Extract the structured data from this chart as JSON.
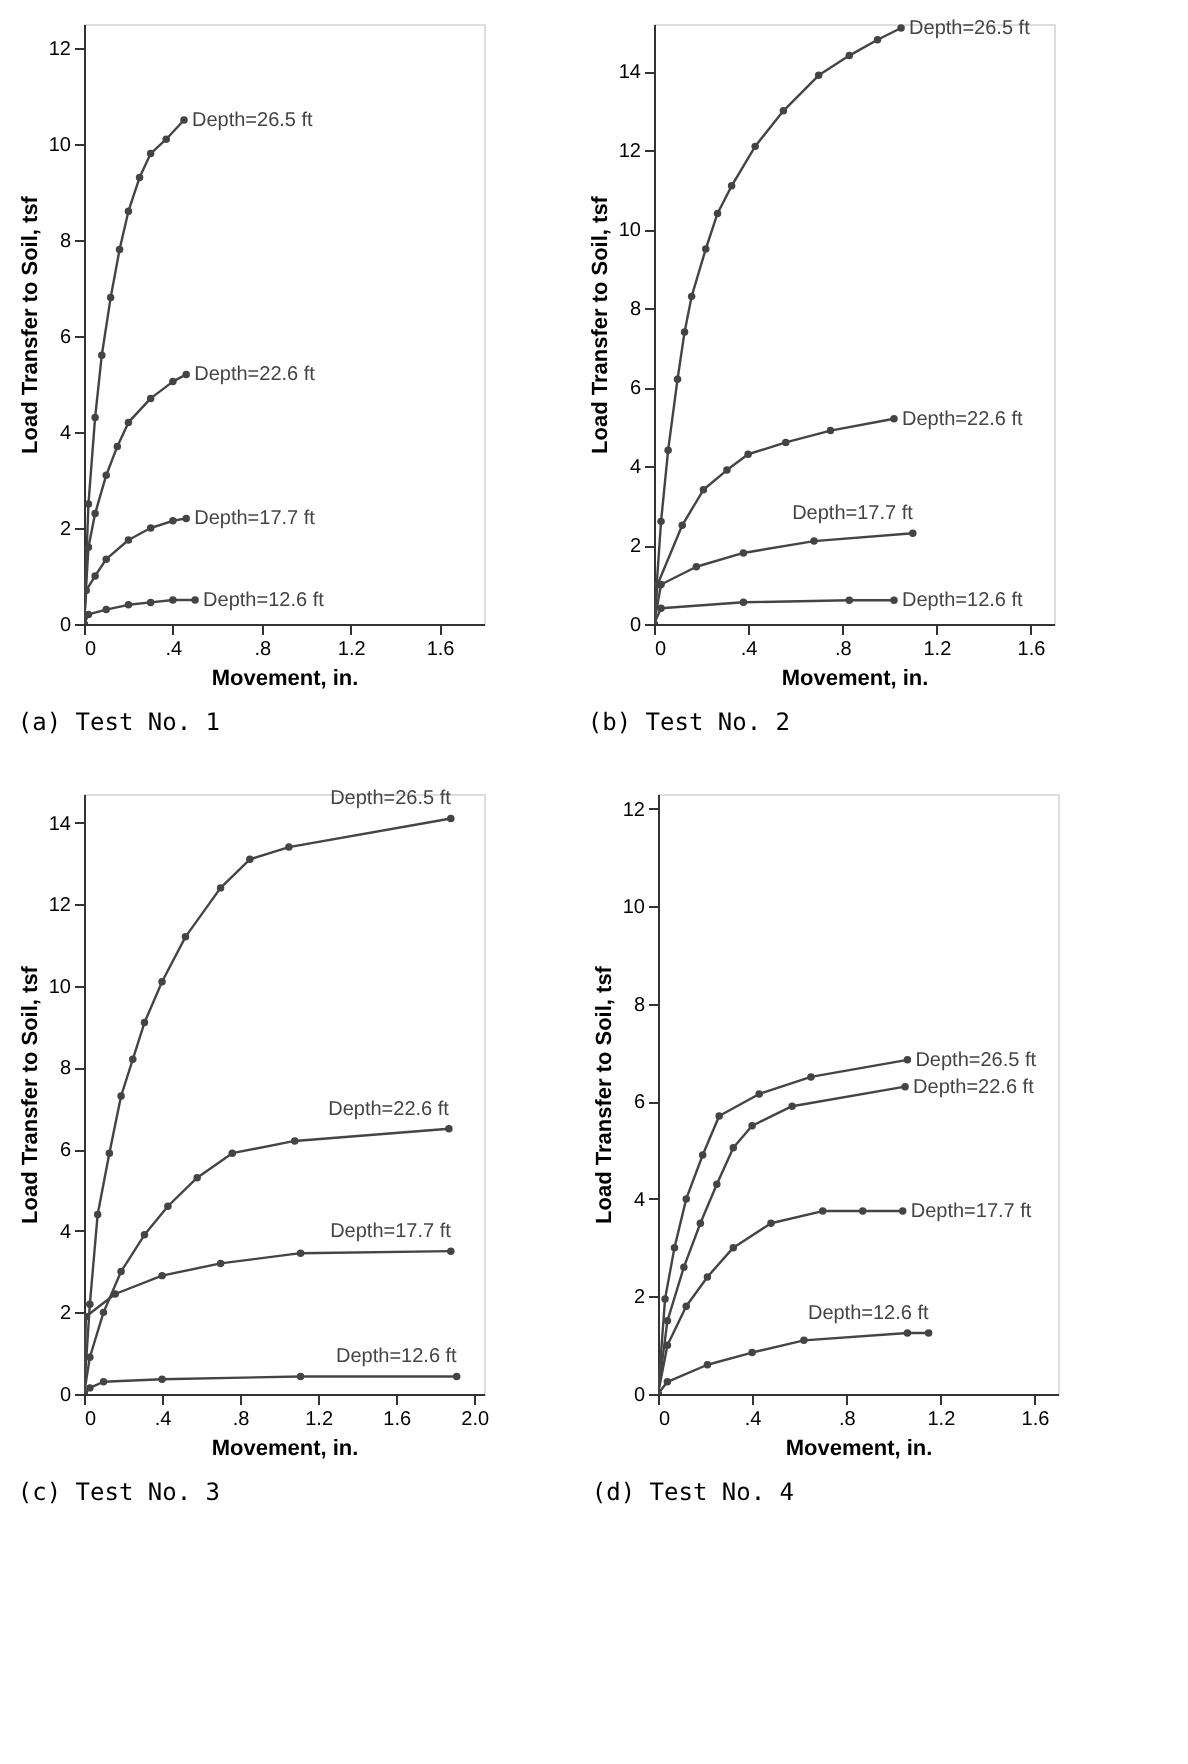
{
  "chart_data": [
    {
      "type": "line",
      "title": "(a) Test No. 1",
      "xlabel": "Movement, in.",
      "ylabel": "Load Transfer to Soil, tsf",
      "xlim": [
        0,
        1.8
      ],
      "xticks": [
        0,
        {
          "value": 0.4,
          "label": ".4"
        },
        {
          "value": 0.8,
          "label": ".8"
        },
        1.2,
        1.6
      ],
      "ylim": [
        0,
        12.5
      ],
      "yticks": [
        0,
        2,
        4,
        6,
        8,
        10,
        12
      ],
      "grid": false,
      "marker": "circle",
      "line_style": "solid",
      "series": [
        {
          "name": "Depth=26.5 ft",
          "color": "#444444",
          "x": [
            0,
            0.02,
            0.05,
            0.08,
            0.12,
            0.16,
            0.2,
            0.25,
            0.3,
            0.37,
            0.45
          ],
          "values": [
            0,
            2.5,
            4.3,
            5.6,
            6.8,
            7.8,
            8.6,
            9.3,
            9.8,
            10.1,
            10.5
          ]
        },
        {
          "name": "Depth=22.6 ft",
          "color": "#444444",
          "x": [
            0,
            0.02,
            0.05,
            0.1,
            0.15,
            0.2,
            0.3,
            0.4,
            0.46
          ],
          "values": [
            0,
            1.6,
            2.3,
            3.1,
            3.7,
            4.2,
            4.7,
            5.05,
            5.2
          ]
        },
        {
          "name": "Depth=17.7 ft",
          "color": "#444444",
          "x": [
            0,
            0.01,
            0.05,
            0.1,
            0.2,
            0.3,
            0.4,
            0.46
          ],
          "values": [
            0,
            0.7,
            1.0,
            1.35,
            1.75,
            2.0,
            2.15,
            2.2
          ]
        },
        {
          "name": "Depth=12.6 ft",
          "color": "#444444",
          "x": [
            0,
            0.02,
            0.1,
            0.2,
            0.3,
            0.4,
            0.5
          ],
          "values": [
            0,
            0.2,
            0.3,
            0.4,
            0.45,
            0.5,
            0.5
          ]
        }
      ],
      "tick_labels": true
    },
    {
      "type": "line",
      "title": "(b) Test No. 2",
      "xlabel": "Movement, in.",
      "ylabel": "Load Transfer to Soil, tsf",
      "xlim": [
        0,
        1.7
      ],
      "xticks": [
        0,
        {
          "value": 0.4,
          "label": ".4"
        },
        {
          "value": 0.8,
          "label": ".8"
        },
        1.2,
        1.6
      ],
      "ylim": [
        0,
        15.2
      ],
      "yticks": [
        0,
        2,
        4,
        6,
        8,
        10,
        12,
        14
      ],
      "grid": false,
      "marker": "circle",
      "line_style": "solid",
      "series": [
        {
          "name": "Depth=26.5 ft",
          "color": "#444444",
          "x": [
            0,
            0.03,
            0.06,
            0.1,
            0.13,
            0.16,
            0.22,
            0.27,
            0.33,
            0.43,
            0.55,
            0.7,
            0.83,
            0.95,
            1.05
          ],
          "values": [
            0,
            2.6,
            4.4,
            6.2,
            7.4,
            8.3,
            9.5,
            10.4,
            11.1,
            12.1,
            13.0,
            13.9,
            14.4,
            14.8,
            15.1
          ]
        },
        {
          "name": "Depth=22.6 ft",
          "color": "#444444",
          "x": [
            0,
            0.015,
            0.12,
            0.21,
            0.31,
            0.4,
            0.56,
            0.75,
            1.02
          ],
          "values": [
            0,
            1.0,
            2.5,
            3.4,
            3.9,
            4.3,
            4.6,
            4.9,
            5.2
          ]
        },
        {
          "name": "Depth=17.7 ft",
          "color": "#444444",
          "x": [
            0,
            0.03,
            0.18,
            0.38,
            0.68,
            1.1
          ],
          "values": [
            0,
            1.0,
            1.45,
            1.8,
            2.1,
            2.3
          ]
        },
        {
          "name": "Depth=12.6 ft",
          "color": "#444444",
          "x": [
            0,
            0.03,
            0.38,
            0.83,
            1.02
          ],
          "values": [
            0,
            0.4,
            0.55,
            0.6,
            0.6
          ]
        }
      ],
      "tick_labels": true
    },
    {
      "type": "line",
      "title": "(c) Test No. 3",
      "xlabel": "Movement, in.",
      "ylabel": "Load Transfer to Soil, tsf",
      "xlim": [
        0,
        2.05
      ],
      "xticks": [
        0,
        {
          "value": 0.4,
          "label": ".4"
        },
        {
          "value": 0.8,
          "label": ".8"
        },
        1.2,
        1.6,
        {
          "value": 2.0,
          "label": "2.0"
        }
      ],
      "ylim": [
        0,
        14.7
      ],
      "yticks": [
        0,
        2,
        4,
        6,
        8,
        10,
        12,
        14
      ],
      "grid": false,
      "marker": "circle",
      "line_style": "solid",
      "series": [
        {
          "name": "Depth=26.5 ft",
          "color": "#444444",
          "x": [
            0,
            0.03,
            0.07,
            0.13,
            0.19,
            0.25,
            0.31,
            0.4,
            0.52,
            0.7,
            0.85,
            1.05,
            1.88
          ],
          "values": [
            0,
            2.2,
            4.4,
            5.9,
            7.3,
            8.2,
            9.1,
            10.1,
            11.2,
            12.4,
            13.1,
            13.4,
            14.1
          ]
        },
        {
          "name": "Depth=22.6 ft",
          "color": "#444444",
          "x": [
            0,
            0.03,
            0.1,
            0.19,
            0.31,
            0.43,
            0.58,
            0.76,
            1.08,
            1.87
          ],
          "values": [
            0,
            0.9,
            2.0,
            3.0,
            3.9,
            4.6,
            5.3,
            5.9,
            6.2,
            6.5
          ]
        },
        {
          "name": "Depth=17.7 ft",
          "color": "#444444",
          "x": [
            0,
            0.01,
            0.16,
            0.4,
            0.7,
            1.11,
            1.88
          ],
          "values": [
            0,
            1.9,
            2.45,
            2.9,
            3.2,
            3.45,
            3.5
          ]
        },
        {
          "name": "Depth=12.6 ft",
          "color": "#444444",
          "x": [
            0,
            0.03,
            0.1,
            0.4,
            1.11,
            1.91
          ],
          "values": [
            0,
            0.15,
            0.3,
            0.36,
            0.43,
            0.43
          ]
        }
      ],
      "tick_labels": true
    },
    {
      "type": "line",
      "title": "(d) Test No. 4",
      "xlabel": "Movement, in.",
      "ylabel": "Load Transfer to Soil, tsf",
      "xlim": [
        0,
        1.7
      ],
      "xticks": [
        0,
        {
          "value": 0.4,
          "label": ".4"
        },
        {
          "value": 0.8,
          "label": ".8"
        },
        1.2,
        1.6
      ],
      "ylim": [
        0,
        12.3
      ],
      "yticks": [
        0,
        2,
        4,
        6,
        8,
        10,
        12
      ],
      "grid": false,
      "marker": "circle",
      "line_style": "solid",
      "series": [
        {
          "name": "Depth=26.5 ft",
          "color": "#444444",
          "x": [
            0,
            0.03,
            0.07,
            0.12,
            0.19,
            0.26,
            0.43,
            0.65,
            1.06
          ],
          "values": [
            0,
            1.95,
            3.0,
            4.0,
            4.9,
            5.7,
            6.15,
            6.5,
            6.85
          ]
        },
        {
          "name": "Depth=22.6 ft",
          "color": "#444444",
          "x": [
            0,
            0.04,
            0.11,
            0.18,
            0.25,
            0.32,
            0.4,
            0.57,
            1.05
          ],
          "values": [
            0,
            1.5,
            2.6,
            3.5,
            4.3,
            5.05,
            5.5,
            5.9,
            6.3
          ]
        },
        {
          "name": "Depth=17.7 ft",
          "color": "#444444",
          "x": [
            0,
            0.04,
            0.12,
            0.21,
            0.32,
            0.48,
            0.7,
            0.87,
            1.04
          ],
          "values": [
            0,
            1.0,
            1.8,
            2.4,
            3.0,
            3.5,
            3.75,
            3.75,
            3.75
          ]
        },
        {
          "name": "Depth=12.6 ft",
          "color": "#444444",
          "x": [
            0,
            0.04,
            0.21,
            0.4,
            0.62,
            1.06,
            1.15
          ],
          "values": [
            0,
            0.25,
            0.6,
            0.85,
            1.1,
            1.25,
            1.25
          ]
        }
      ],
      "tick_labels": true
    }
  ]
}
